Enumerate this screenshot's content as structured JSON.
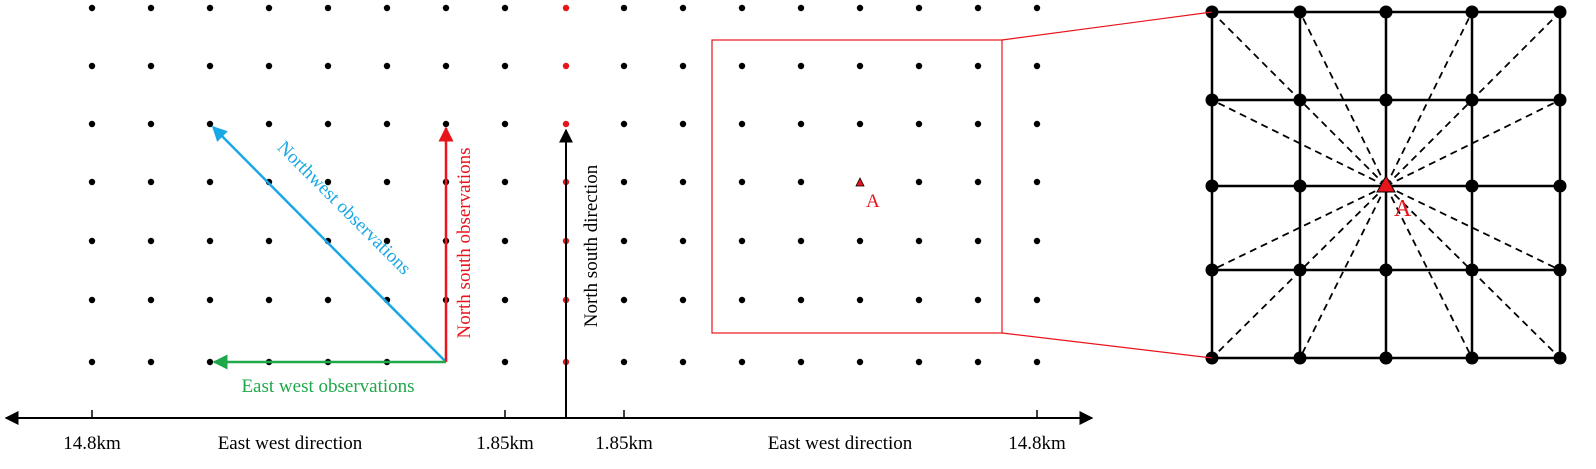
{
  "observations": {
    "northwest": "Northwest observations",
    "north_south": "North south observations",
    "east_west": "East west observations"
  },
  "directions": {
    "north_south": "North south direction"
  },
  "axis": {
    "labels": [
      "14.8km",
      "East west direction",
      "1.85km",
      "1.85km",
      "East west direction",
      "14.8km"
    ]
  },
  "points": {
    "box_point": "A",
    "zoom_point": "A"
  }
}
